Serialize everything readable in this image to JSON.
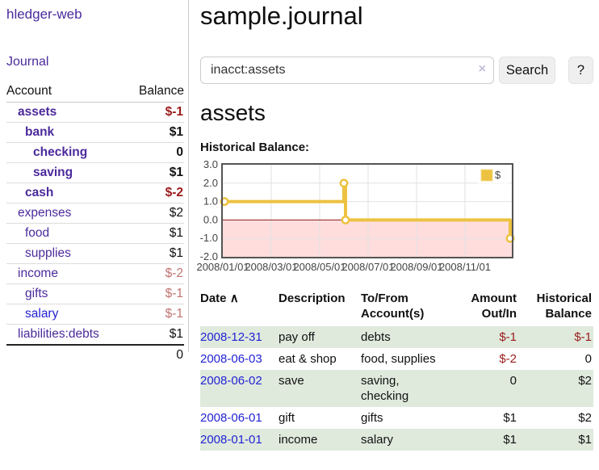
{
  "app": {
    "title": "hledger-web",
    "nav_journal": "Journal"
  },
  "sidebar": {
    "header": {
      "account": "Account",
      "balance": "Balance"
    },
    "accounts": [
      {
        "name": "assets",
        "balance": "$-1",
        "tone": "negd"
      },
      {
        "name": "bank",
        "balance": "$1"
      },
      {
        "name": "checking",
        "balance": "0"
      },
      {
        "name": "saving",
        "balance": "$1"
      },
      {
        "name": "cash",
        "balance": "$-2",
        "tone": "negd"
      },
      {
        "name": "expenses",
        "balance": "$2"
      },
      {
        "name": "food",
        "balance": "$1"
      },
      {
        "name": "supplies",
        "balance": "$1"
      },
      {
        "name": "income",
        "balance": "$-2",
        "tone": "negl"
      },
      {
        "name": "gifts",
        "balance": "$-1",
        "tone": "negl"
      },
      {
        "name": "salary",
        "balance": "$-1",
        "tone": "negl",
        "name_tone": "blue"
      },
      {
        "name": "liabilities:debts",
        "balance": "$1"
      }
    ],
    "total": "0"
  },
  "main": {
    "title": "sample.journal",
    "search": {
      "value": "inacct:assets",
      "clear_icon": "×",
      "button": "Search",
      "help": "?"
    },
    "account_heading": "assets",
    "chart_label": "Historical Balance:"
  },
  "chart_data": {
    "type": "line",
    "step": true,
    "title": "Historical Balance",
    "series": [
      {
        "name": "$",
        "color": "#edc240",
        "points": [
          [
            "2008-01-01",
            1
          ],
          [
            "2008-06-01",
            2
          ],
          [
            "2008-06-03",
            0
          ],
          [
            "2008-12-31",
            -1
          ]
        ]
      }
    ],
    "ylim": [
      -2,
      3
    ],
    "ytick_labels": [
      "3.0",
      "2.0",
      "1.0",
      "0.0",
      "-1.0",
      "-2.0"
    ],
    "xtick_labels": [
      "2008/01/01",
      "2008/03/01",
      "2008/05/01",
      "2008/07/01",
      "2008/09/01",
      "2008/11/01"
    ],
    "legend": {
      "label": "$",
      "position": "top-right"
    },
    "grid": true,
    "negative_region_color": "#ffdddd",
    "zero_line_color": "#8b1a1a",
    "border_color": "#545454",
    "gridline_color": "#e2e2e2"
  },
  "register": {
    "headers": {
      "date": "Date",
      "sort": "∧",
      "description": "Description",
      "account": "To/From Account(s)",
      "amount": "Amount Out/In",
      "balance": "Historical Balance"
    },
    "rows": [
      {
        "date": "2008-12-31",
        "description": "pay off",
        "accounts": "debts",
        "amount": "$-1",
        "balance": "$-1",
        "amount_tone": "neg",
        "balance_tone": "neg"
      },
      {
        "date": "2008-06-03",
        "description": "eat & shop",
        "accounts": "food, supplies",
        "amount": "$-2",
        "balance": "0",
        "amount_tone": "neg"
      },
      {
        "date": "2008-06-02",
        "description": "save",
        "accounts": "saving, checking",
        "amount": "0",
        "balance": "$2"
      },
      {
        "date": "2008-06-01",
        "description": "gift",
        "accounts": "gifts",
        "amount": "$1",
        "balance": "$2"
      },
      {
        "date": "2008-01-01",
        "description": "income",
        "accounts": "salary",
        "amount": "$1",
        "balance": "$1"
      }
    ]
  }
}
